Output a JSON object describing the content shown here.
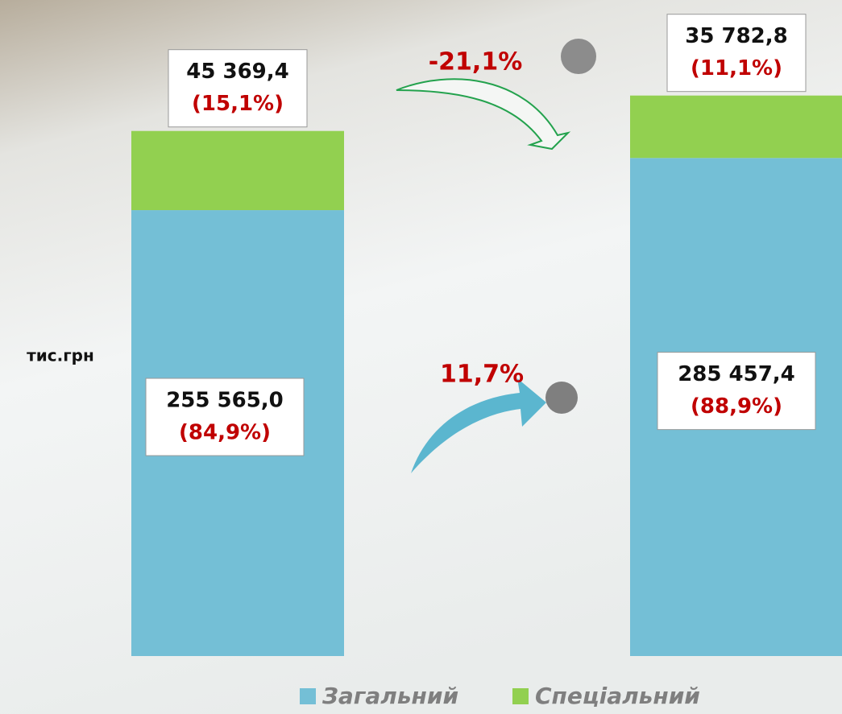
{
  "chart_data": {
    "type": "stacked_bar",
    "categories": [
      null,
      null
    ],
    "series": [
      {
        "name": "Загальний",
        "color": "#74bfd6",
        "values": [
          255565.0,
          285457.4
        ],
        "value_labels": [
          "255 565,0",
          "285 457,4"
        ],
        "share_labels": [
          "(84,9%)",
          "(88,9%)"
        ]
      },
      {
        "name": "Спеціальний",
        "color": "#92d050",
        "values": [
          45369.4,
          35782.8
        ],
        "value_labels": [
          "45 369,4",
          "35 782,8"
        ],
        "share_labels": [
          "(15,1%)",
          "(11,1%)"
        ]
      }
    ],
    "ylim": [
      0,
      376000
    ],
    "y_label": "тис.грн",
    "annotations": [
      "-21,1%",
      "11,7%"
    ],
    "legend": "bottom"
  }
}
